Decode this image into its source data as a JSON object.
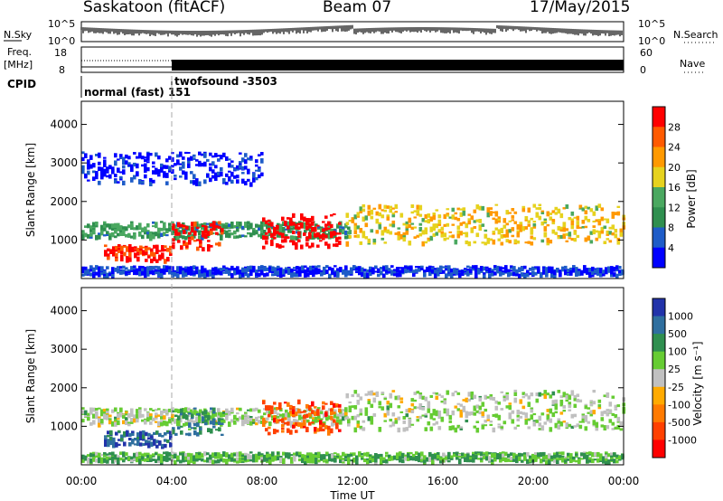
{
  "header": {
    "title_left": "Saskatoon (fitACF)",
    "title_mid": "Beam 07",
    "title_right": "17/May/2015"
  },
  "top_panels": {
    "nsky_label": "N.Sky",
    "nsearch_label": "N.Search",
    "noise_ticks": [
      "10^5",
      "10^0"
    ],
    "freq_label_1": "Freq.",
    "freq_label_2": "[MHz]",
    "freq_ticks": [
      "18",
      "8"
    ],
    "nave_label": "Nave",
    "nave_ticks": [
      "60",
      "0"
    ],
    "cpid_label": "CPID",
    "cpid_entries": [
      "normal (fast) 151",
      "twofsound -3503"
    ]
  },
  "colors": {
    "power": [
      "#0000ff",
      "#1e5cc8",
      "#2f8f4f",
      "#4aa860",
      "#e6d21e",
      "#ff9900",
      "#ff5a00",
      "#ff0000"
    ],
    "velocity": [
      "#2233aa",
      "#2f6f9f",
      "#2f8f4f",
      "#66cc33",
      "#c0c0c0",
      "#ffaa00",
      "#ff7a00",
      "#ff4000",
      "#ff0000"
    ]
  },
  "chart_data": [
    {
      "type": "heatmap",
      "name": "power",
      "ylabel": "Slant Range [km]",
      "xlabel": "Time UT",
      "y_ticks": [
        "1000",
        "2000",
        "3000",
        "4000"
      ],
      "ylim": [
        0,
        4600
      ],
      "xlim": [
        0,
        24
      ],
      "colorbar": {
        "label": "Power [dB]",
        "ticks": [
          "4",
          "8",
          "12",
          "16",
          "20",
          "24",
          "28"
        ]
      },
      "features": [
        {
          "t0": 0.0,
          "t1": 11.8,
          "r0": 1100,
          "r1": 1500,
          "level": 0.35
        },
        {
          "t0": 1.0,
          "t1": 4.0,
          "r0": 500,
          "r1": 900,
          "level": 0.9
        },
        {
          "t0": 4.0,
          "t1": 6.2,
          "r0": 800,
          "r1": 1500,
          "level": 0.95
        },
        {
          "t0": 8.0,
          "t1": 11.4,
          "r0": 850,
          "r1": 1700,
          "level": 1.0
        },
        {
          "t0": 11.7,
          "t1": 24.0,
          "r0": 950,
          "r1": 1950,
          "level": 0.6
        },
        {
          "t0": 0.0,
          "t1": 8.0,
          "r0": 2500,
          "r1": 3300,
          "level": 0.08
        },
        {
          "t0": 0.0,
          "t1": 24.0,
          "r0": 120,
          "r1": 350,
          "level": 0.12
        }
      ]
    },
    {
      "type": "heatmap",
      "name": "velocity",
      "ylabel": "Slant Range [km]",
      "xlabel": "Time UT",
      "y_ticks": [
        "1000",
        "2000",
        "3000",
        "4000"
      ],
      "ylim": [
        0,
        4600
      ],
      "xlim": [
        0,
        24
      ],
      "colorbar": {
        "label": "Velocity [m s⁻¹]",
        "ticks": [
          "1000",
          "500",
          "100",
          "25",
          "-25",
          "-100",
          "-500",
          "-1000"
        ]
      },
      "features": [
        {
          "t0": 0.0,
          "t1": 11.8,
          "r0": 1100,
          "r1": 1500,
          "level": 0.45
        },
        {
          "t0": 1.0,
          "t1": 4.0,
          "r0": 500,
          "r1": 900,
          "level": 0.15
        },
        {
          "t0": 4.0,
          "t1": 6.2,
          "r0": 800,
          "r1": 1500,
          "level": 0.25
        },
        {
          "t0": 8.0,
          "t1": 11.4,
          "r0": 850,
          "r1": 1700,
          "level": 0.8
        },
        {
          "t0": 11.7,
          "t1": 24.0,
          "r0": 950,
          "r1": 1950,
          "level": 0.45
        },
        {
          "t0": 0.0,
          "t1": 24.0,
          "r0": 120,
          "r1": 350,
          "level": 0.35
        }
      ]
    }
  ],
  "x_ticks": [
    "00:00",
    "04:00",
    "08:00",
    "12:00",
    "16:00",
    "20:00",
    "00:00"
  ]
}
